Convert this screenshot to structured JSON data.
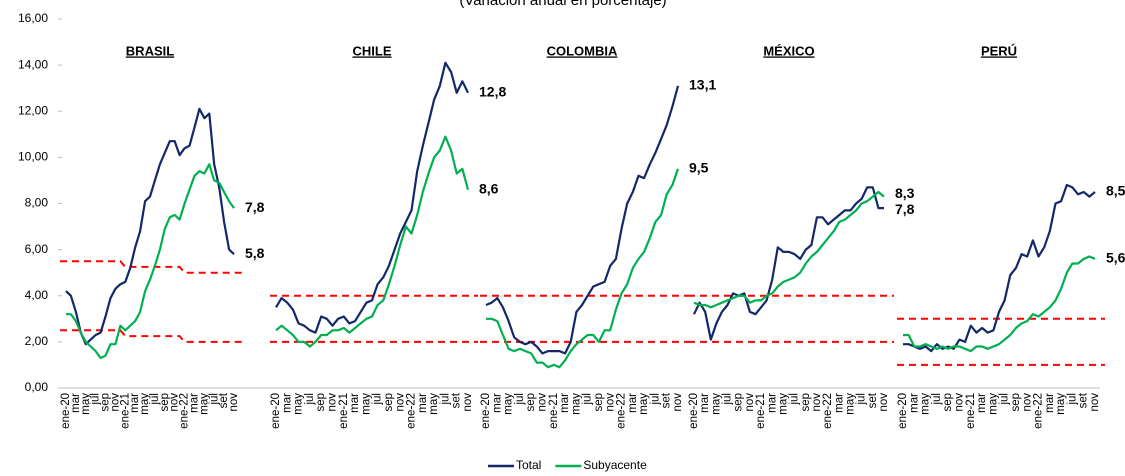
{
  "chart_data": {
    "type": "line",
    "subtitle": "(Variación anual en porcentaje)",
    "ylim": [
      0,
      16
    ],
    "yticks": [
      {
        "value": 0,
        "label": "0,00"
      },
      {
        "value": 2,
        "label": "2,00"
      },
      {
        "value": 4,
        "label": "4,00"
      },
      {
        "value": 6,
        "label": "6,00"
      },
      {
        "value": 8,
        "label": "8,00"
      },
      {
        "value": 10,
        "label": "10,00"
      },
      {
        "value": 12,
        "label": "12,00"
      },
      {
        "value": 14,
        "label": "14,00"
      },
      {
        "value": 16,
        "label": "16,00"
      }
    ],
    "categories": [
      "ene-20",
      null,
      "mar",
      null,
      "may",
      null,
      "jul",
      null,
      "sep",
      null,
      "nov",
      null,
      "ene-21",
      null,
      "mar",
      null,
      "may",
      null,
      "jul",
      null,
      "sep",
      null,
      "nov",
      null,
      "ene-22",
      null,
      "mar",
      null,
      "may",
      null,
      "jul",
      null,
      "set",
      null,
      "nov"
    ],
    "series": [
      {
        "name": "Total",
        "color": "#13286b"
      },
      {
        "name": "Subyacente",
        "color": "#00b050"
      }
    ],
    "target_color": "#ff0000",
    "panels": [
      {
        "title": "BRASIL",
        "series": [
          {
            "values": [
              4.2,
              4.0,
              3.3,
              2.4,
              1.9,
              2.1,
              2.3,
              2.4,
              3.1,
              3.9,
              4.3,
              4.5,
              4.6,
              5.2,
              6.1,
              6.8,
              8.1,
              8.3,
              9.0,
              9.7,
              10.2,
              10.7,
              10.7,
              10.1,
              10.4,
              10.5,
              11.3,
              12.1,
              11.7,
              11.9,
              9.7,
              8.7,
              7.2,
              6.0,
              5.8
            ],
            "end_label": "5,8"
          },
          {
            "values": [
              3.2,
              3.2,
              2.9,
              2.4,
              2.0,
              1.8,
              1.6,
              1.3,
              1.4,
              1.9,
              1.9,
              2.7,
              2.5,
              2.7,
              2.9,
              3.3,
              4.2,
              4.7,
              5.3,
              6.0,
              6.9,
              7.4,
              7.5,
              7.3,
              8.0,
              8.6,
              9.2,
              9.4,
              9.3,
              9.7,
              9.0,
              8.9,
              8.5,
              8.1,
              7.8
            ],
            "end_label": "7,8"
          }
        ],
        "target_upper": [
          5.5,
          5.5,
          5.5,
          5.5,
          5.5,
          5.5,
          5.5,
          5.5,
          5.5,
          5.5,
          5.5,
          5.5,
          5.25,
          5.25,
          5.25,
          5.25,
          5.25,
          5.25,
          5.25,
          5.25,
          5.25,
          5.25,
          5.25,
          5.25,
          5,
          5,
          5,
          5,
          5,
          5,
          5,
          5,
          5,
          5,
          5
        ],
        "target_lower": [
          2.5,
          2.5,
          2.5,
          2.5,
          2.5,
          2.5,
          2.5,
          2.5,
          2.5,
          2.5,
          2.5,
          2.5,
          2.25,
          2.25,
          2.25,
          2.25,
          2.25,
          2.25,
          2.25,
          2.25,
          2.25,
          2.25,
          2.25,
          2.25,
          2,
          2,
          2,
          2,
          2,
          2,
          2,
          2,
          2,
          2,
          2
        ]
      },
      {
        "title": "CHILE",
        "series": [
          {
            "values": [
              3.5,
              3.9,
              3.7,
              3.4,
              2.8,
              2.7,
              2.5,
              2.4,
              3.1,
              3.0,
              2.7,
              3.0,
              3.1,
              2.8,
              2.9,
              3.3,
              3.7,
              3.8,
              4.5,
              4.8,
              5.3,
              6.0,
              6.7,
              7.2,
              7.7,
              9.4,
              10.5,
              11.5,
              12.5,
              13.1,
              14.1,
              13.7,
              12.8,
              13.3,
              12.8
            ],
            "end_label": "12,8"
          },
          {
            "values": [
              2.5,
              2.7,
              2.5,
              2.3,
              2.0,
              2.0,
              1.8,
              2.0,
              2.3,
              2.3,
              2.5,
              2.5,
              2.6,
              2.4,
              2.6,
              2.8,
              3.0,
              3.1,
              3.6,
              3.8,
              4.5,
              5.3,
              6.2,
              7.0,
              6.7,
              7.5,
              8.5,
              9.3,
              10.0,
              10.3,
              10.9,
              10.3,
              9.3,
              9.5,
              8.6
            ],
            "end_label": "8,6"
          }
        ],
        "target_upper": [
          4,
          4,
          4,
          4,
          4,
          4,
          4,
          4,
          4,
          4,
          4,
          4,
          4,
          4,
          4,
          4,
          4,
          4,
          4,
          4,
          4,
          4,
          4,
          4,
          4,
          4,
          4,
          4,
          4,
          4,
          4,
          4,
          4,
          4,
          4
        ],
        "target_lower": [
          2,
          2,
          2,
          2,
          2,
          2,
          2,
          2,
          2,
          2,
          2,
          2,
          2,
          2,
          2,
          2,
          2,
          2,
          2,
          2,
          2,
          2,
          2,
          2,
          2,
          2,
          2,
          2,
          2,
          2,
          2,
          2,
          2,
          2,
          2
        ]
      },
      {
        "title": "COLOMBIA",
        "series": [
          {
            "values": [
              3.6,
              3.7,
              3.9,
              3.5,
              2.9,
              2.2,
              2.0,
              1.9,
              2.0,
              1.8,
              1.5,
              1.6,
              1.6,
              1.6,
              1.5,
              2.0,
              3.3,
              3.6,
              4.0,
              4.4,
              4.5,
              4.6,
              5.3,
              5.6,
              6.9,
              8.0,
              8.5,
              9.2,
              9.1,
              9.7,
              10.2,
              10.8,
              11.4,
              12.2,
              13.1
            ],
            "end_label": "13,1"
          },
          {
            "values": [
              3.0,
              3.0,
              2.9,
              2.3,
              1.7,
              1.6,
              1.7,
              1.6,
              1.5,
              1.1,
              1.1,
              0.9,
              1.0,
              0.9,
              1.2,
              1.6,
              1.9,
              2.1,
              2.3,
              2.3,
              2.0,
              2.5,
              2.5,
              3.4,
              4.1,
              4.5,
              5.2,
              5.6,
              5.9,
              6.5,
              7.2,
              7.5,
              8.4,
              8.8,
              9.5
            ],
            "end_label": "9,5"
          }
        ],
        "target_upper": [
          4,
          4,
          4,
          4,
          4,
          4,
          4,
          4,
          4,
          4,
          4,
          4,
          4,
          4,
          4,
          4,
          4,
          4,
          4,
          4,
          4,
          4,
          4,
          4,
          4,
          4,
          4,
          4,
          4,
          4,
          4,
          4,
          4,
          4,
          4
        ],
        "target_lower": [
          2,
          2,
          2,
          2,
          2,
          2,
          2,
          2,
          2,
          2,
          2,
          2,
          2,
          2,
          2,
          2,
          2,
          2,
          2,
          2,
          2,
          2,
          2,
          2,
          2,
          2,
          2,
          2,
          2,
          2,
          2,
          2,
          2,
          2,
          2
        ]
      },
      {
        "title": "MÉXICO",
        "series": [
          {
            "values": [
              3.2,
              3.7,
              3.3,
              2.1,
              2.8,
              3.3,
              3.6,
              4.1,
              4.0,
              4.1,
              3.3,
              3.2,
              3.5,
              3.8,
              4.7,
              6.1,
              5.9,
              5.9,
              5.8,
              5.6,
              6.0,
              6.2,
              7.4,
              7.4,
              7.1,
              7.3,
              7.5,
              7.7,
              7.7,
              8.0,
              8.2,
              8.7,
              8.7,
              7.8,
              7.8
            ],
            "end_label": "7,8"
          },
          {
            "values": [
              3.7,
              3.6,
              3.6,
              3.5,
              3.6,
              3.7,
              3.8,
              3.9,
              4.0,
              4.0,
              3.7,
              3.8,
              3.8,
              4.0,
              4.1,
              4.4,
              4.6,
              4.7,
              4.8,
              5.0,
              5.4,
              5.7,
              5.9,
              6.2,
              6.5,
              6.8,
              7.2,
              7.3,
              7.5,
              7.7,
              8.0,
              8.1,
              8.3,
              8.5,
              8.3
            ],
            "end_label": "8,3"
          }
        ],
        "target_upper": [
          4,
          4,
          4,
          4,
          4,
          4,
          4,
          4,
          4,
          4,
          4,
          4,
          4,
          4,
          4,
          4,
          4,
          4,
          4,
          4,
          4,
          4,
          4,
          4,
          4,
          4,
          4,
          4,
          4,
          4,
          4,
          4,
          4,
          4,
          4
        ],
        "target_lower": [
          2,
          2,
          2,
          2,
          2,
          2,
          2,
          2,
          2,
          2,
          2,
          2,
          2,
          2,
          2,
          2,
          2,
          2,
          2,
          2,
          2,
          2,
          2,
          2,
          2,
          2,
          2,
          2,
          2,
          2,
          2,
          2,
          2,
          2,
          2
        ]
      },
      {
        "title": "PERÚ",
        "series": [
          {
            "values": [
              1.9,
              1.9,
              1.8,
              1.7,
              1.8,
              1.6,
              1.9,
              1.7,
              1.8,
              1.7,
              2.1,
              2.0,
              2.7,
              2.4,
              2.6,
              2.4,
              2.5,
              3.3,
              3.8,
              4.9,
              5.2,
              5.8,
              5.7,
              6.4,
              5.7,
              6.1,
              6.8,
              8.0,
              8.1,
              8.8,
              8.7,
              8.4,
              8.5,
              8.3,
              8.5
            ],
            "end_label": "8,5"
          },
          {
            "values": [
              2.3,
              2.3,
              1.8,
              1.8,
              1.9,
              1.8,
              1.7,
              1.8,
              1.7,
              1.8,
              1.8,
              1.7,
              1.6,
              1.8,
              1.8,
              1.7,
              1.8,
              1.9,
              2.1,
              2.3,
              2.6,
              2.8,
              2.9,
              3.2,
              3.1,
              3.3,
              3.5,
              3.8,
              4.3,
              5.0,
              5.4,
              5.4,
              5.6,
              5.7,
              5.6
            ],
            "end_label": "5,6"
          }
        ],
        "target_upper": [
          3,
          3,
          3,
          3,
          3,
          3,
          3,
          3,
          3,
          3,
          3,
          3,
          3,
          3,
          3,
          3,
          3,
          3,
          3,
          3,
          3,
          3,
          3,
          3,
          3,
          3,
          3,
          3,
          3,
          3,
          3,
          3,
          3,
          3,
          3
        ],
        "target_lower": [
          1,
          1,
          1,
          1,
          1,
          1,
          1,
          1,
          1,
          1,
          1,
          1,
          1,
          1,
          1,
          1,
          1,
          1,
          1,
          1,
          1,
          1,
          1,
          1,
          1,
          1,
          1,
          1,
          1,
          1,
          1,
          1,
          1,
          1,
          1
        ]
      }
    ]
  }
}
